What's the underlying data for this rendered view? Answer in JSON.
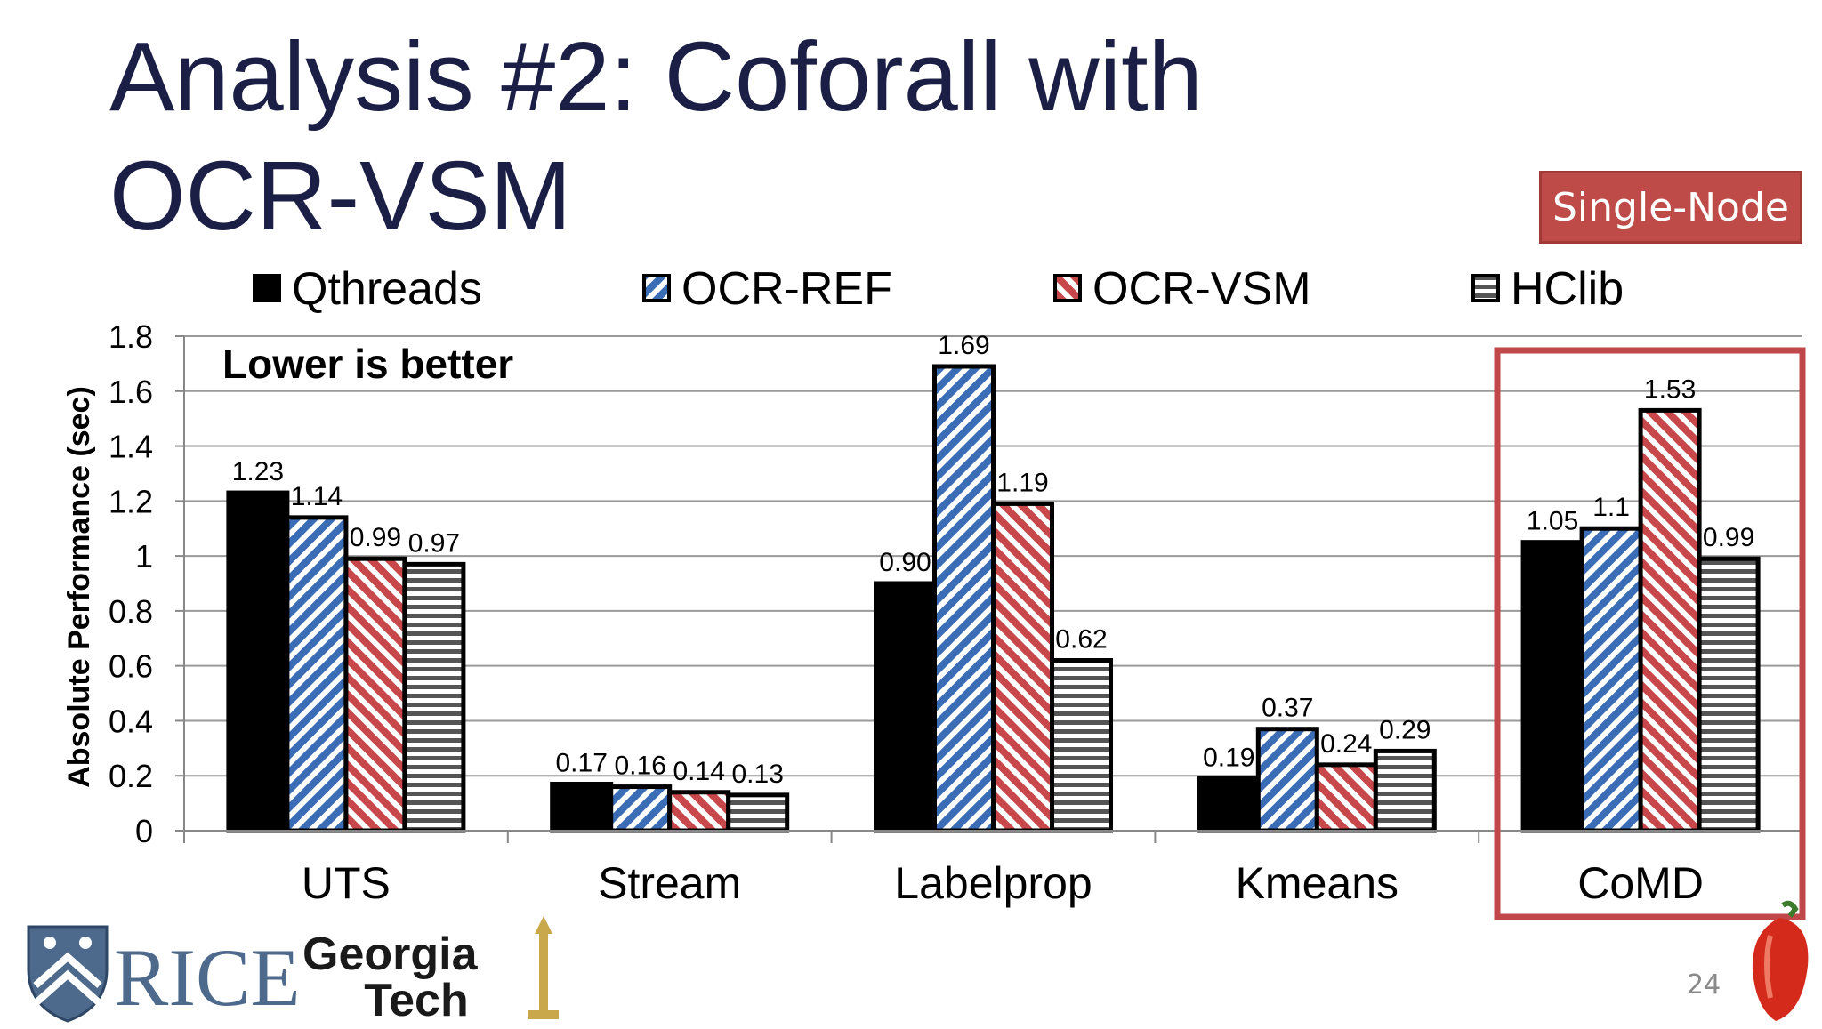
{
  "slide": {
    "title_line1": "Analysis #2: Coforall with",
    "title_line2": "OCR-VSM",
    "badge": "Single-Node",
    "page_number": "24"
  },
  "logos": {
    "rice": "RICE",
    "gt_line1": "Georgia",
    "gt_line2": "Tech"
  },
  "colors": {
    "title": "#1b1f45",
    "qthreads": "#000000",
    "ocr_ref": "#3a6db5",
    "ocr_vsm": "#c8474a",
    "hclib": "#555555",
    "highlight": "#c0474a"
  },
  "icons": [
    "rice-shield-icon",
    "georgia-tech-tower-icon",
    "pepper-icon"
  ],
  "chart_data": {
    "type": "bar",
    "categories": [
      "UTS",
      "Stream",
      "Labelprop",
      "Kmeans",
      "CoMD"
    ],
    "series": [
      {
        "name": "Qthreads",
        "values": [
          1.23,
          0.17,
          0.9,
          0.19,
          1.05
        ],
        "labels": [
          "1.23",
          "0.17",
          "0.90",
          "0.19",
          "1.05"
        ]
      },
      {
        "name": "OCR-REF",
        "values": [
          1.14,
          0.16,
          1.69,
          0.37,
          1.1
        ],
        "labels": [
          "1.14",
          "0.16",
          "1.69",
          "0.37",
          "1.1"
        ]
      },
      {
        "name": "OCR-VSM",
        "values": [
          0.99,
          0.14,
          1.19,
          0.24,
          1.53
        ],
        "labels": [
          "0.99",
          "0.14",
          "1.19",
          "0.24",
          "1.53"
        ]
      },
      {
        "name": "HClib",
        "values": [
          0.97,
          0.13,
          0.62,
          0.29,
          0.99
        ],
        "labels": [
          "0.97",
          "0.13",
          "0.62",
          "0.29",
          "0.99"
        ]
      }
    ],
    "ylabel": "Absolute Performance (sec)",
    "ylim": [
      0,
      1.8
    ],
    "yticks": [
      "0",
      "0.2",
      "0.4",
      "0.6",
      "0.8",
      "1",
      "1.2",
      "1.4",
      "1.6",
      "1.8"
    ],
    "annotation": "Lower is better",
    "legend_position": "top",
    "grid": true,
    "highlighted_category": "CoMD"
  }
}
